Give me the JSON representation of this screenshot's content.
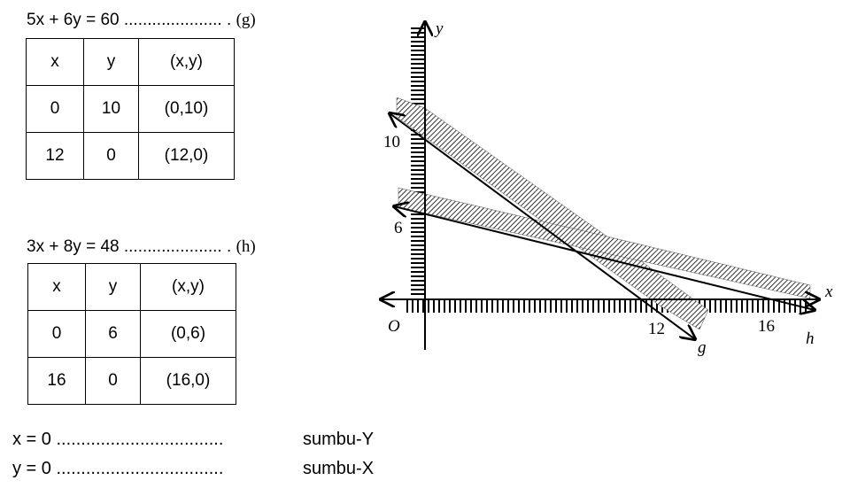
{
  "equations": [
    {
      "text": "5x + 6y = 60",
      "dots": "..................... .",
      "label": "(g)",
      "table": {
        "header": [
          "x",
          "y",
          "(x,y)"
        ],
        "rows": [
          [
            "0",
            "10",
            "(0,10)"
          ],
          [
            "12",
            "0",
            "(12,0)"
          ]
        ]
      }
    },
    {
      "text": "3x + 8y = 48",
      "dots": "..................... .",
      "label": "(h)",
      "table": {
        "header": [
          "x",
          "y",
          "(x,y)"
        ],
        "rows": [
          [
            "0",
            "6",
            "(0,6)"
          ],
          [
            "16",
            "0",
            "(16,0)"
          ]
        ]
      }
    }
  ],
  "axis_notes": [
    {
      "equation": "x = 0",
      "dots": "..................................",
      "axis": "sumbu-Y"
    },
    {
      "equation": "y = 0",
      "dots": "..................................",
      "axis": "sumbu-X"
    }
  ],
  "graph": {
    "y_axis": "y",
    "x_axis": "x",
    "origin": "O",
    "y_ticks": [
      "10",
      "6"
    ],
    "x_ticks": [
      "12",
      "16"
    ],
    "lines": [
      "g",
      "h"
    ]
  }
}
